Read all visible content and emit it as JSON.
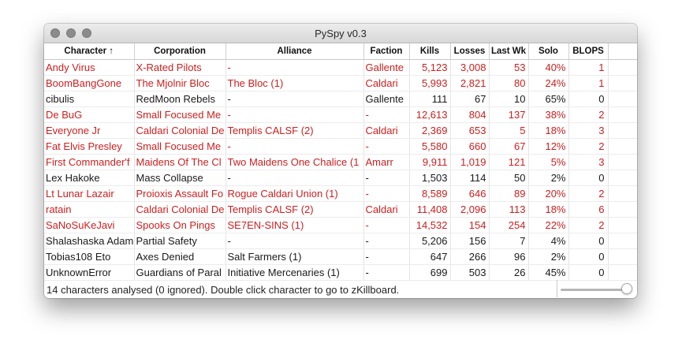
{
  "window": {
    "title": "PySpy v0.3"
  },
  "colors": {
    "highlight_text": "#cc1f1f",
    "normal_text": "#1a1a1a"
  },
  "columns": [
    {
      "label": "Character ↑",
      "name": "character"
    },
    {
      "label": "Corporation",
      "name": "corporation"
    },
    {
      "label": "Alliance",
      "name": "alliance"
    },
    {
      "label": "Faction",
      "name": "faction"
    },
    {
      "label": "Kills",
      "name": "kills"
    },
    {
      "label": "Losses",
      "name": "losses"
    },
    {
      "label": "Last Wk",
      "name": "last-wk"
    },
    {
      "label": "Solo",
      "name": "solo"
    },
    {
      "label": "BLOPS",
      "name": "blops"
    },
    {
      "label": "",
      "name": "extra"
    }
  ],
  "rows": [
    {
      "highlight": true,
      "cells": [
        "Andy Virus",
        "X-Rated Pilots",
        "-",
        "Gallente",
        "5,123",
        "3,008",
        "53",
        "40%",
        "1",
        ""
      ]
    },
    {
      "highlight": true,
      "cells": [
        "BoomBangGone",
        "The Mjolnir Bloc",
        "The Bloc (1)",
        "Caldari",
        "5,993",
        "2,821",
        "80",
        "24%",
        "1",
        ""
      ]
    },
    {
      "highlight": false,
      "cells": [
        "cibulis",
        "RedMoon Rebels",
        "-",
        "Gallente",
        "111",
        "67",
        "10",
        "65%",
        "0",
        ""
      ]
    },
    {
      "highlight": true,
      "cells": [
        "De BuG",
        "Small Focused Me",
        "-",
        "-",
        "12,613",
        "804",
        "137",
        "38%",
        "2",
        ""
      ]
    },
    {
      "highlight": true,
      "cells": [
        "Everyone Jr",
        "Caldari Colonial De",
        "Templis CALSF (2)",
        "Caldari",
        "2,369",
        "653",
        "5",
        "18%",
        "3",
        ""
      ]
    },
    {
      "highlight": true,
      "cells": [
        "Fat Elvis Presley",
        "Small Focused Me",
        "-",
        "-",
        "5,580",
        "660",
        "67",
        "12%",
        "2",
        ""
      ]
    },
    {
      "highlight": true,
      "cells": [
        "First Commander'f",
        "Maidens Of The Cl",
        "Two Maidens One Chalice (1",
        "Amarr",
        "9,911",
        "1,019",
        "121",
        "5%",
        "3",
        ""
      ]
    },
    {
      "highlight": false,
      "cells": [
        "Lex Hakoke",
        "Mass Collapse",
        "-",
        "-",
        "1,503",
        "114",
        "50",
        "2%",
        "0",
        ""
      ]
    },
    {
      "highlight": true,
      "cells": [
        "Lt Lunar Lazair",
        "Proioxis Assault Fo",
        "Rogue Caldari Union (1)",
        "-",
        "8,589",
        "646",
        "89",
        "20%",
        "2",
        ""
      ]
    },
    {
      "highlight": true,
      "cells": [
        "ratain",
        "Caldari Colonial De",
        "Templis CALSF (2)",
        "Caldari",
        "11,408",
        "2,096",
        "113",
        "18%",
        "6",
        ""
      ]
    },
    {
      "highlight": true,
      "cells": [
        "SaNoSuKeJavi",
        "Spooks On Pings",
        "SE7EN-SINS (1)",
        "-",
        "14,532",
        "154",
        "254",
        "22%",
        "2",
        ""
      ]
    },
    {
      "highlight": false,
      "cells": [
        "Shalashaska Adam",
        "Partial Safety",
        "-",
        "-",
        "5,206",
        "156",
        "7",
        "4%",
        "0",
        ""
      ]
    },
    {
      "highlight": false,
      "cells": [
        "Tobias108 Eto",
        "Axes Denied",
        "Salt Farmers (1)",
        "-",
        "647",
        "266",
        "96",
        "2%",
        "0",
        ""
      ]
    },
    {
      "highlight": false,
      "cells": [
        "UnknownError",
        "Guardians of Paral",
        "Initiative Mercenaries (1)",
        "-",
        "699",
        "503",
        "26",
        "45%",
        "0",
        ""
      ]
    }
  ],
  "status_text": "14 characters analysed (0 ignored). Double click character to go  to zKillboard.",
  "opacity_slider": {
    "value_fraction": 1.0
  }
}
